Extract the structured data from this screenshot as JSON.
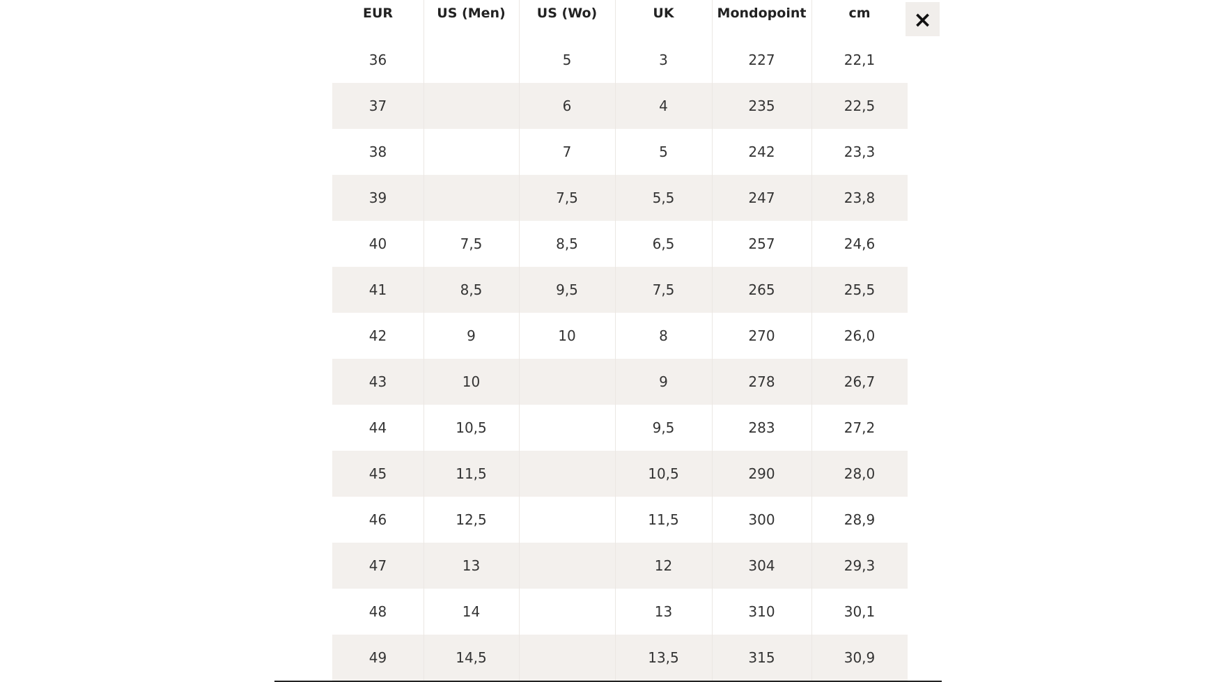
{
  "table": {
    "header": [
      "EUR",
      "US (Men)",
      "US (Wo)",
      "UK",
      "Mondopoint",
      "cm"
    ],
    "rows": [
      [
        "36",
        null,
        "5",
        "3",
        "227",
        "22,1"
      ],
      [
        "37",
        null,
        "6",
        "4",
        "235",
        "22,5"
      ],
      [
        "38",
        null,
        "7",
        "5",
        "242",
        "23,3"
      ],
      [
        "39",
        null,
        "7,5",
        "5,5",
        "247",
        "23,8"
      ],
      [
        "40",
        "7,5",
        "8,5",
        "6,5",
        "257",
        "24,6"
      ],
      [
        "41",
        "8,5",
        "9,5",
        "7,5",
        "265",
        "25,5"
      ],
      [
        "42",
        "9",
        "10",
        "8",
        "270",
        "26,0"
      ],
      [
        "43",
        "10",
        null,
        "9",
        "278",
        "26,7"
      ],
      [
        "44",
        "10,5",
        null,
        "9,5",
        "283",
        "27,2"
      ],
      [
        "45",
        "11,5",
        null,
        "10,5",
        "290",
        "28,0"
      ],
      [
        "46",
        "12,5",
        null,
        "11,5",
        "300",
        "28,9"
      ],
      [
        "47",
        "13",
        null,
        "12",
        "304",
        "29,3"
      ],
      [
        "48",
        "14",
        null,
        "13",
        "310",
        "30,1"
      ],
      [
        "49",
        "14,5",
        null,
        "13,5",
        "315",
        "30,9"
      ]
    ]
  },
  "close_button": {
    "label": "×"
  }
}
